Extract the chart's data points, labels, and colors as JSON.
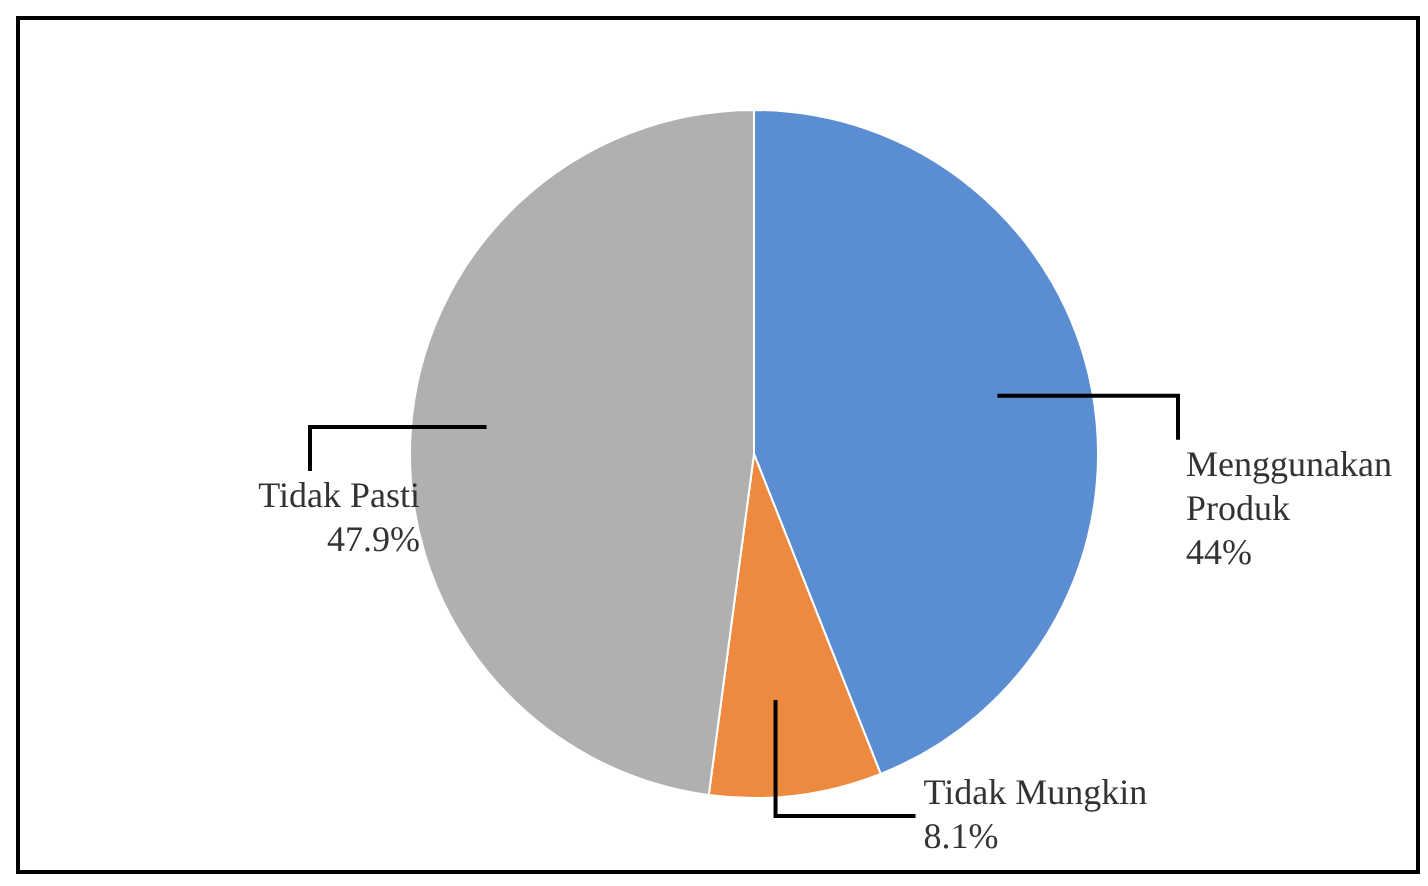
{
  "chart_data": {
    "type": "pie",
    "categories": [
      "Menggunakan Produk",
      "Tidak Mungkin",
      "Tidak Pasti"
    ],
    "values": [
      44,
      8.1,
      47.9
    ],
    "colors": [
      "#5b8dd3",
      "#ed8a3f",
      "#b0b0b0"
    ],
    "value_labels": [
      "44%",
      "8.1%",
      "47.9%"
    ],
    "legend": false
  }
}
